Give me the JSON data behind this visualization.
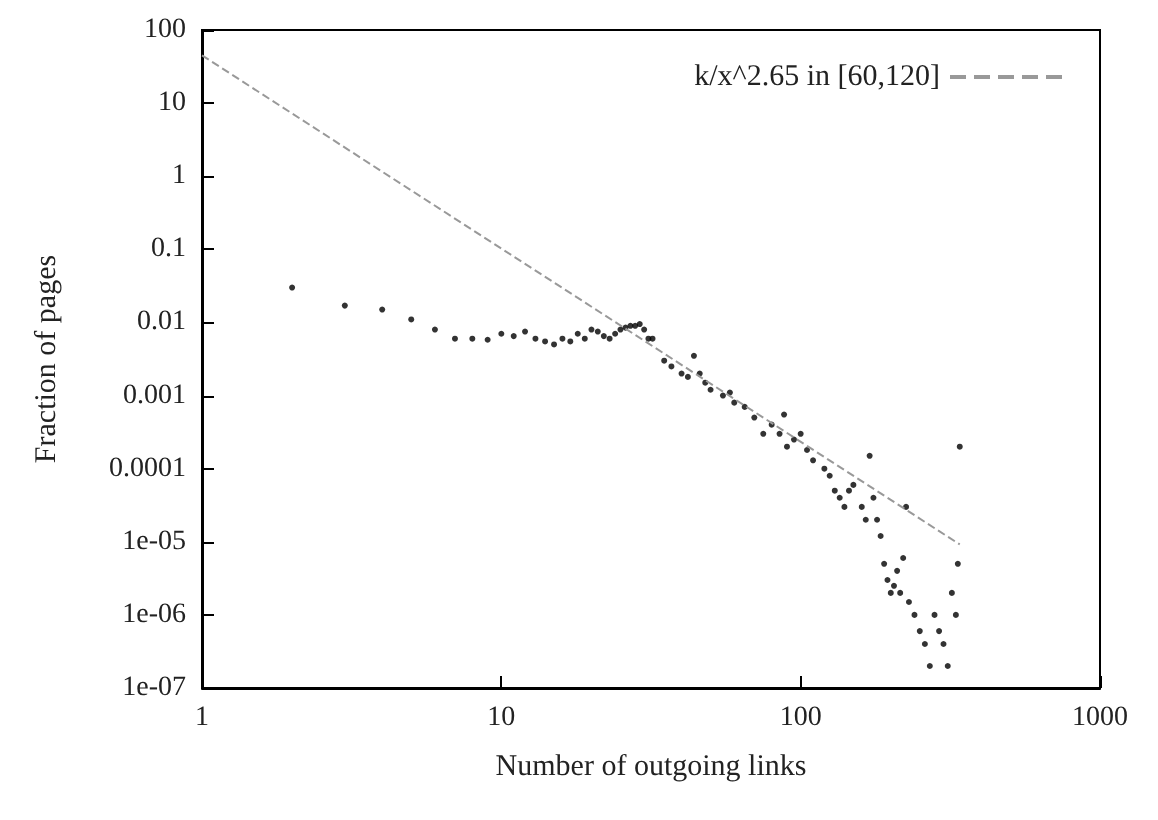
{
  "chart_data": {
    "type": "scatter",
    "xlabel": "Number of outgoing links",
    "ylabel": "Fraction of pages",
    "log": "xy",
    "grid": false,
    "legend": "top right",
    "xlim": [
      1,
      1000
    ],
    "ylim": [
      1e-07,
      100
    ],
    "xticks": [
      1,
      10,
      100,
      1000
    ],
    "yticks": [
      {
        "value": 1e-07,
        "label": "1e-07"
      },
      {
        "value": 1e-06,
        "label": "1e-06"
      },
      {
        "value": 1e-05,
        "label": "1e-05"
      },
      0.0001,
      0.001,
      0.01,
      0.1,
      1,
      10,
      100
    ],
    "series": [
      {
        "color": "#000000",
        "marker": "circle",
        "x": [
          2,
          3,
          4,
          5,
          6,
          7,
          8,
          9,
          10,
          11,
          12,
          13,
          14,
          15,
          16,
          17,
          18,
          19,
          20,
          21,
          22,
          23,
          24,
          25,
          26,
          27,
          28,
          29,
          30,
          31,
          32,
          35,
          37,
          40,
          42,
          44,
          46,
          48,
          50,
          55,
          58,
          60,
          65,
          70,
          75,
          80,
          85,
          88,
          90,
          95,
          100,
          105,
          110,
          120,
          125,
          130,
          135,
          140,
          145,
          150,
          160,
          165,
          170,
          175,
          180,
          185,
          190,
          195,
          200,
          205,
          210,
          215,
          220,
          225,
          230,
          240,
          250,
          260,
          270,
          280,
          290,
          300,
          310,
          320,
          330,
          335,
          340
        ],
        "values": [
          0.03,
          0.017,
          0.015,
          0.011,
          0.008,
          0.006,
          0.006,
          0.0058,
          0.007,
          0.0065,
          0.0075,
          0.006,
          0.0055,
          0.005,
          0.006,
          0.0055,
          0.007,
          0.006,
          0.008,
          0.0075,
          0.0065,
          0.006,
          0.007,
          0.008,
          0.0085,
          0.009,
          0.009,
          0.0095,
          0.008,
          0.006,
          0.006,
          0.003,
          0.0025,
          0.002,
          0.0018,
          0.0035,
          0.002,
          0.0015,
          0.0012,
          0.001,
          0.0011,
          0.0008,
          0.0007,
          0.0005,
          0.0003,
          0.0004,
          0.0003,
          0.00055,
          0.0002,
          0.00025,
          0.0003,
          0.00018,
          0.00013,
          0.0001,
          8e-05,
          5e-05,
          4e-05,
          3e-05,
          5e-05,
          6e-05,
          3e-05,
          2e-05,
          0.00015,
          4e-05,
          2e-05,
          1.2e-05,
          5e-06,
          3e-06,
          2e-06,
          2.5e-06,
          4e-06,
          2e-06,
          6e-06,
          3e-05,
          1.5e-06,
          1e-06,
          6e-07,
          4e-07,
          2e-07,
          1e-06,
          6e-07,
          4e-07,
          2e-07,
          2e-06,
          1e-06,
          5e-06,
          0.0002
        ]
      },
      {
        "type": "line",
        "name": "k/x^2.65 in [60,120]",
        "color": "#999999",
        "line_style": "dashed",
        "marker": "none",
        "x": [
          1,
          340
        ],
        "values": [
          45,
          9.2e-06
        ]
      }
    ]
  }
}
